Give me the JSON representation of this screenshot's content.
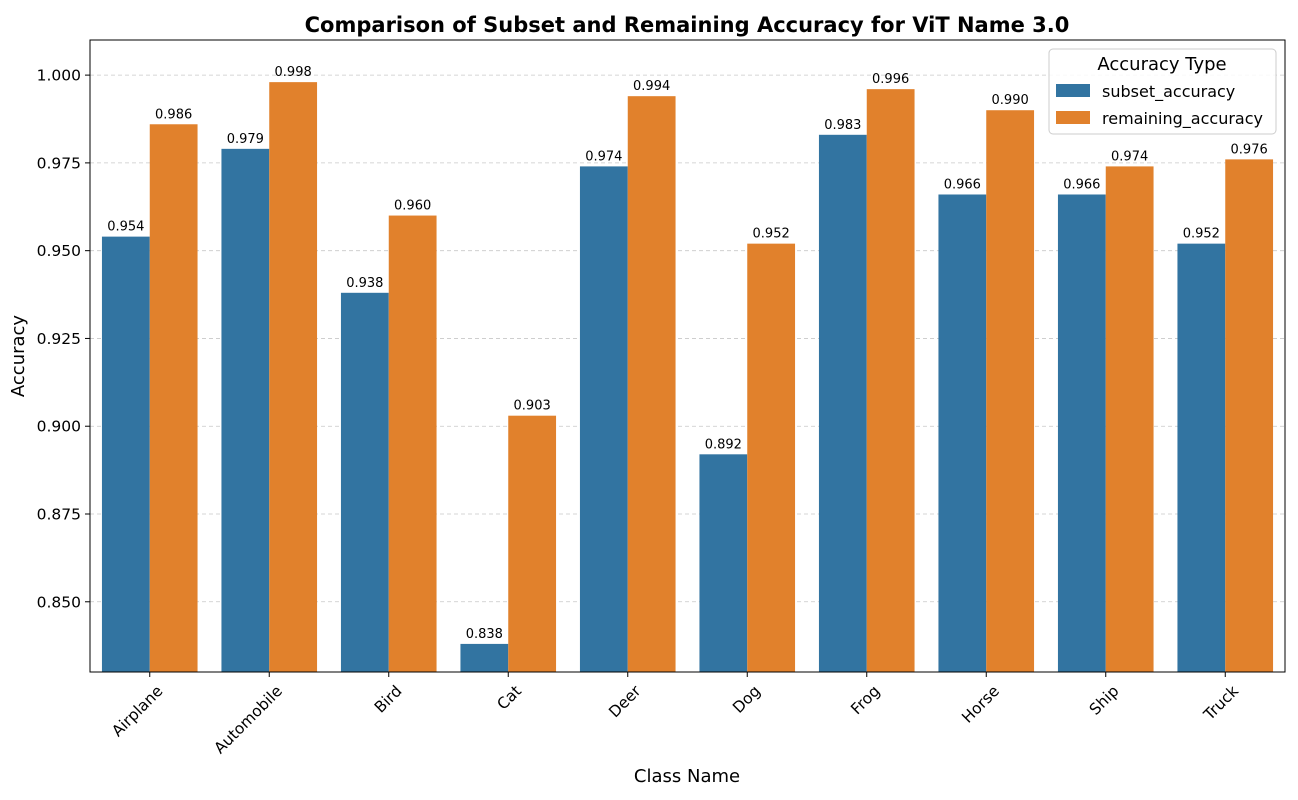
{
  "chart_data": {
    "type": "bar",
    "title": "Comparison of Subset and Remaining Accuracy for ViT Name 3.0",
    "xlabel": "Class Name",
    "ylabel": "Accuracy",
    "categories": [
      "Airplane",
      "Automobile",
      "Bird",
      "Cat",
      "Deer",
      "Dog",
      "Frog",
      "Horse",
      "Ship",
      "Truck"
    ],
    "series": [
      {
        "name": "subset_accuracy",
        "color": "#3274a1",
        "values": [
          0.954,
          0.979,
          0.938,
          0.838,
          0.974,
          0.892,
          0.983,
          0.966,
          0.966,
          0.952
        ],
        "labels": [
          "0.954",
          "0.979",
          "0.938",
          "0.838",
          "0.974",
          "0.892",
          "0.983",
          "0.966",
          "0.966",
          "0.952"
        ]
      },
      {
        "name": "remaining_accuracy",
        "color": "#e1812c",
        "values": [
          0.986,
          0.998,
          0.96,
          0.903,
          0.994,
          0.952,
          0.996,
          0.99,
          0.974,
          0.976
        ],
        "labels": [
          "0.986",
          "0.998",
          "0.960",
          "0.903",
          "0.994",
          "0.952",
          "0.996",
          "0.990",
          "0.974",
          "0.976"
        ]
      }
    ],
    "ylim": [
      0.83,
      1.01
    ],
    "yticks": [
      0.85,
      0.875,
      0.9,
      0.925,
      0.95,
      0.975,
      1.0
    ],
    "ytick_labels": [
      "0.850",
      "0.875",
      "0.900",
      "0.925",
      "0.950",
      "0.975",
      "1.000"
    ],
    "grid": "y-dashed",
    "legend": {
      "title": "Accuracy Type",
      "placement": "top-right"
    }
  }
}
